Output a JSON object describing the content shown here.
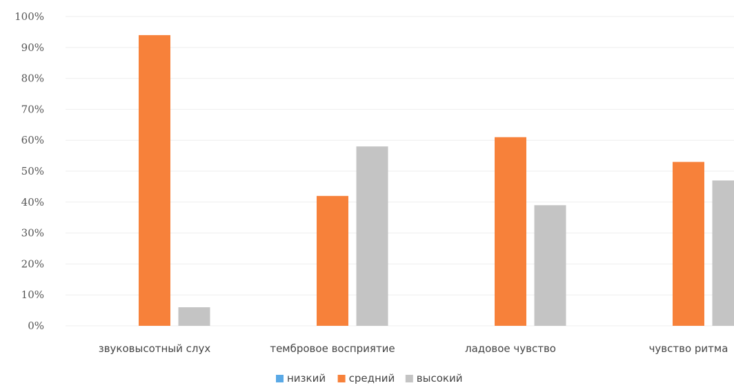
{
  "chart_data": {
    "type": "bar",
    "categories": [
      "звуковысотный слух",
      "тембровое восприятие",
      "ладовое чувство",
      "чувство ритма"
    ],
    "series": [
      {
        "name": "низкий",
        "color": "#5aa9e6",
        "values": [
          0,
          0,
          0,
          0
        ]
      },
      {
        "name": "средний",
        "color": "#f7813a",
        "values": [
          94,
          42,
          61,
          53
        ]
      },
      {
        "name": "высокий",
        "color": "#c4c4c4",
        "values": [
          6,
          58,
          39,
          47
        ]
      }
    ],
    "ylim": [
      0,
      100
    ],
    "yticks": [
      "0%",
      "10%",
      "20%",
      "30%",
      "40%",
      "50%",
      "60%",
      "70%",
      "80%",
      "90%",
      "100%"
    ],
    "grid": true,
    "legend_position": "bottom"
  }
}
